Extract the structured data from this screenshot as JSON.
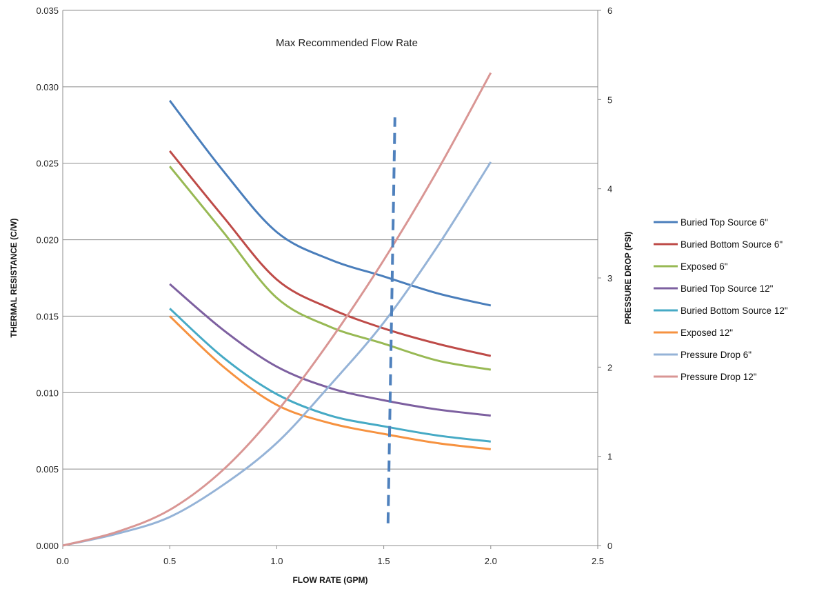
{
  "chart_data": {
    "type": "line",
    "title": "",
    "annotation": "Max Recommended Flow Rate",
    "xlabel": "FLOW RATE (GPM)",
    "ylabel": "THERMAL RESISTANCE (C/W)",
    "y2label": "PRESSURE DROP (PSI)",
    "xlim": [
      0,
      2.5
    ],
    "ylim": [
      0,
      0.035
    ],
    "y2lim": [
      0,
      6
    ],
    "x_ticks": [
      "0.0",
      "0.5",
      "1.0",
      "1.5",
      "2.0",
      "2.5"
    ],
    "y_ticks": [
      "0.000",
      "0.005",
      "0.010",
      "0.015",
      "0.020",
      "0.025",
      "0.030",
      "0.035"
    ],
    "y2_ticks": [
      "0",
      "1",
      "2",
      "3",
      "4",
      "5",
      "6"
    ],
    "grid": "horizontal",
    "legend_position": "right",
    "marker_line": {
      "x": 1.52,
      "y2_range": [
        0.25,
        4.8
      ],
      "color": "#4F81BD",
      "style": "dashed"
    },
    "series": [
      {
        "name": "Buried Top Source 6\"",
        "axis": "left",
        "color": "#4A7EBB",
        "x": [
          0.5,
          0.75,
          1.0,
          1.25,
          1.5,
          1.75,
          2.0
        ],
        "y": [
          0.0291,
          0.0245,
          0.0205,
          0.0187,
          0.0176,
          0.0165,
          0.0157
        ]
      },
      {
        "name": "Buried Bottom Source 6\"",
        "axis": "left",
        "color": "#BE4B48",
        "x": [
          0.5,
          0.75,
          1.0,
          1.25,
          1.5,
          1.75,
          2.0
        ],
        "y": [
          0.0258,
          0.0215,
          0.0174,
          0.0155,
          0.0142,
          0.0132,
          0.0124
        ]
      },
      {
        "name": "Exposed 6\"",
        "axis": "left",
        "color": "#98B954",
        "x": [
          0.5,
          0.75,
          1.0,
          1.25,
          1.5,
          1.75,
          2.0
        ],
        "y": [
          0.0248,
          0.0205,
          0.0162,
          0.0143,
          0.0132,
          0.0121,
          0.0115
        ]
      },
      {
        "name": "Buried Top Source 12\"",
        "axis": "left",
        "color": "#7D60A0",
        "x": [
          0.5,
          0.75,
          1.0,
          1.25,
          1.5,
          1.75,
          2.0
        ],
        "y": [
          0.0171,
          0.0141,
          0.0117,
          0.0103,
          0.0095,
          0.0089,
          0.0085
        ]
      },
      {
        "name": "Buried Bottom Source 12\"",
        "axis": "left",
        "color": "#46AAC5",
        "x": [
          0.5,
          0.75,
          1.0,
          1.25,
          1.5,
          1.75,
          2.0
        ],
        "y": [
          0.0155,
          0.0123,
          0.0099,
          0.0085,
          0.0078,
          0.0072,
          0.0068
        ]
      },
      {
        "name": "Exposed 12\"",
        "axis": "left",
        "color": "#F69240",
        "x": [
          0.5,
          0.75,
          1.0,
          1.25,
          1.5,
          1.75,
          2.0
        ],
        "y": [
          0.015,
          0.0117,
          0.0092,
          0.008,
          0.0073,
          0.0067,
          0.0063
        ]
      },
      {
        "name": "Pressure Drop 6\"",
        "axis": "right",
        "color": "#95B3D7",
        "x": [
          0.0,
          0.25,
          0.5,
          0.75,
          1.0,
          1.25,
          1.5,
          1.75,
          2.0
        ],
        "y": [
          0.0,
          0.13,
          0.32,
          0.68,
          1.15,
          1.8,
          2.5,
          3.35,
          4.3
        ]
      },
      {
        "name": "Pressure Drop 12\"",
        "axis": "right",
        "color": "#D99694",
        "x": [
          0.0,
          0.25,
          0.5,
          0.75,
          1.0,
          1.25,
          1.5,
          1.75,
          2.0
        ],
        "y": [
          0.0,
          0.15,
          0.4,
          0.85,
          1.5,
          2.3,
          3.2,
          4.2,
          5.3
        ]
      }
    ]
  }
}
